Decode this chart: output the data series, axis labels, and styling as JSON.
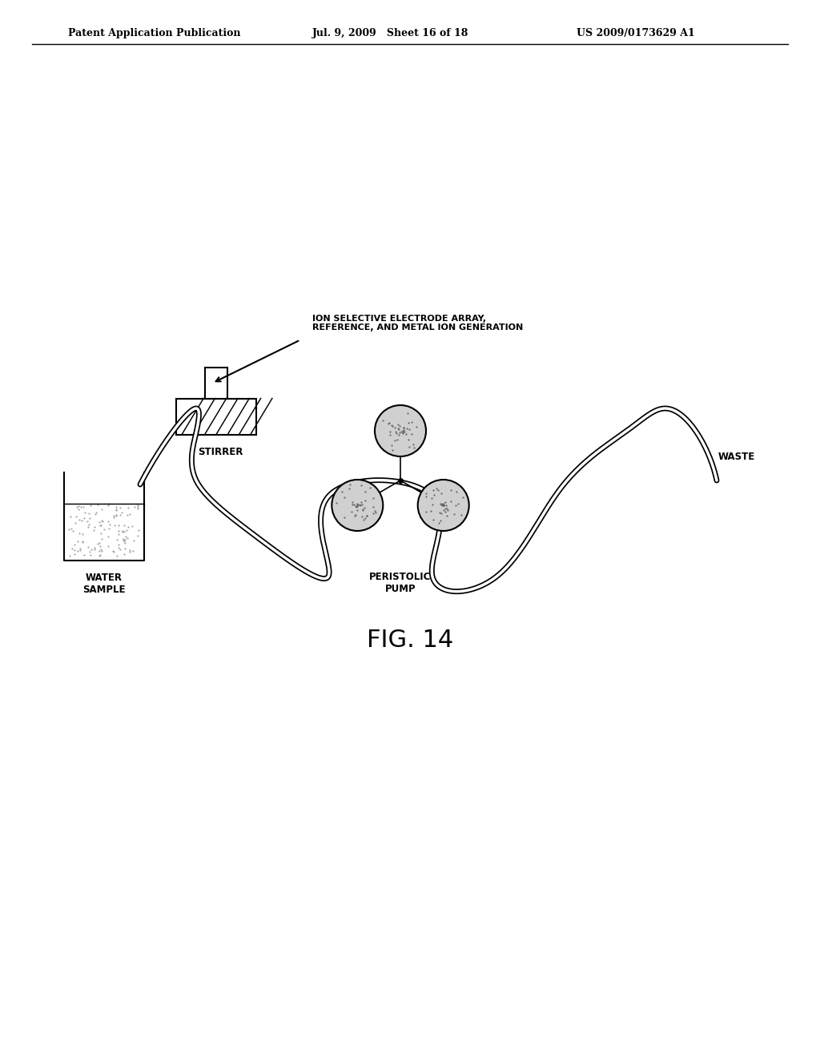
{
  "header_left": "Patent Application Publication",
  "header_mid": "Jul. 9, 2009   Sheet 16 of 18",
  "header_right": "US 2009/0173629 A1",
  "fig_label": "FIG. 14",
  "label_electrode": "ION SELECTIVE ELECTRODE ARRAY,\nREFERENCE, AND METAL ION GENERATION",
  "label_stirrer": "STIRRER",
  "label_pump": "PERISTOLIC\nPUMP",
  "label_waste": "WASTE",
  "label_water": "WATER\nSAMPLE",
  "bg_color": "#ffffff",
  "line_color": "#000000"
}
